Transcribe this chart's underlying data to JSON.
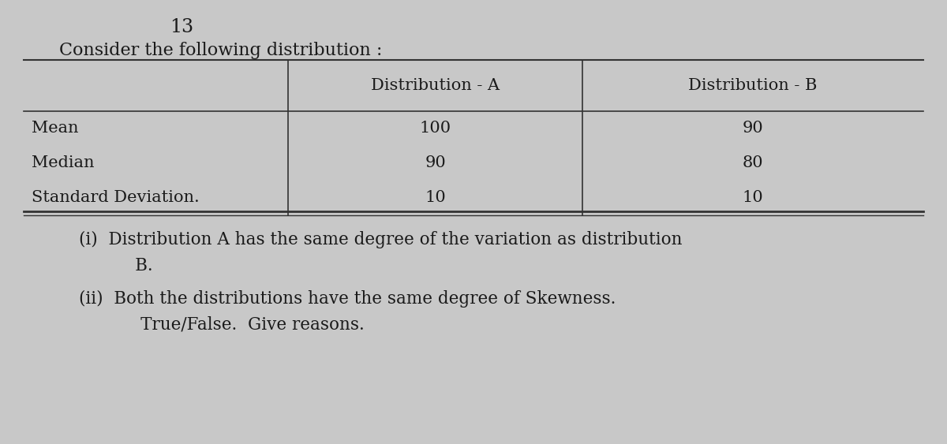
{
  "question_number": "13",
  "intro_text": "Consider the following distribution :",
  "col_headers": [
    "",
    "Distribution - A",
    "Distribution - B"
  ],
  "row_labels": [
    "Mean",
    "Median",
    "Standard Deviation."
  ],
  "dist_a_values": [
    "100",
    "90",
    "10"
  ],
  "dist_b_values": [
    "90",
    "80",
    "10"
  ],
  "stmt_i_line1": "(i)  Distribution A has the same degree of the variation as distribution",
  "stmt_i_line2": "      B.",
  "stmt_ii_line1": "(ii)  Both the distributions have the same degree of Skewness.",
  "stmt_ii_line2": "       True/False.  Give reasons.",
  "bg_color": "#c8c8c8",
  "text_color": "#1a1a1a",
  "line_color": "#333333",
  "font_size_number": 17,
  "font_size_intro": 16,
  "font_size_table": 15,
  "font_size_statements": 15.5
}
